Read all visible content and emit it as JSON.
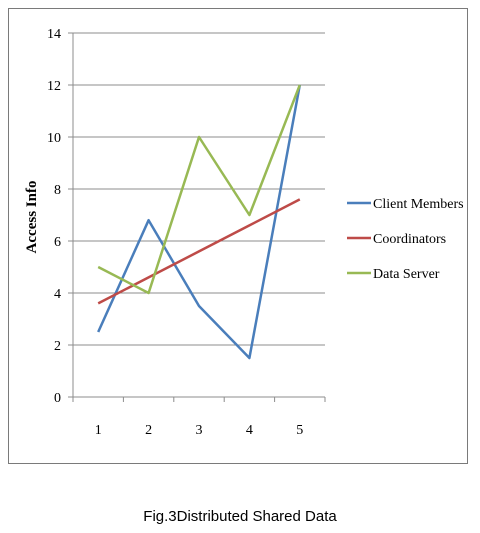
{
  "figure": {
    "caption": "Fig.3Distributed Shared Data"
  },
  "chart_data": {
    "type": "line",
    "x": [
      1,
      2,
      3,
      4,
      5
    ],
    "ylabel": "Access Info",
    "xlabel": "",
    "ylim": [
      0,
      14
    ],
    "yticks": [
      0,
      2,
      4,
      6,
      8,
      10,
      12,
      14
    ],
    "grid": true,
    "legend": "right",
    "series": [
      {
        "name": "Client Members",
        "color": "#4a7ebb",
        "values": [
          2.5,
          6.8,
          3.5,
          1.5,
          12.0
        ]
      },
      {
        "name": "Coordinators",
        "color": "#be4b48",
        "values": [
          3.6,
          4.6,
          5.6,
          6.6,
          7.6
        ]
      },
      {
        "name": "Data Server",
        "color": "#98b954",
        "values": [
          5.0,
          4.0,
          10.0,
          7.0,
          12.0
        ]
      }
    ]
  }
}
